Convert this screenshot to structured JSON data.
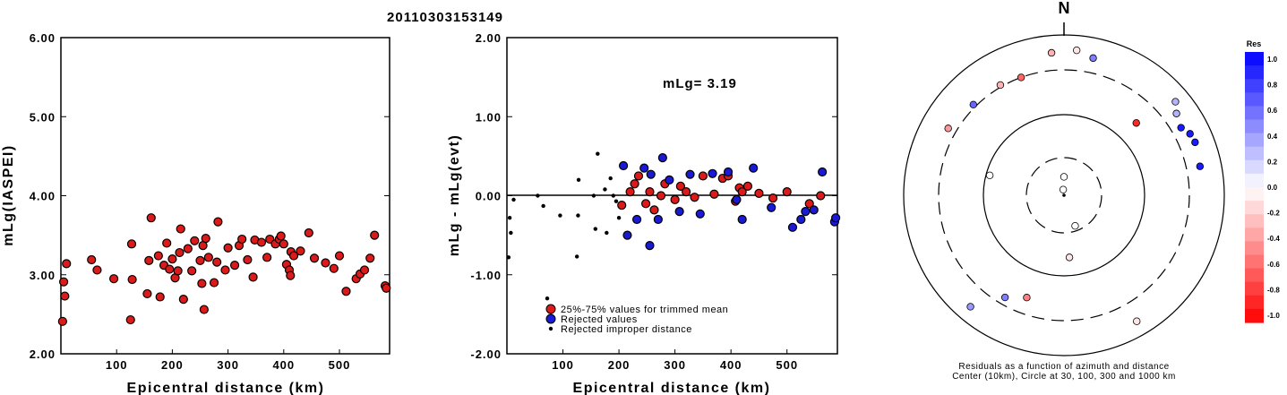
{
  "event_id": "20110303153149",
  "colors": {
    "accepted": "#dd1a1a",
    "rejected": "#1a1ad6",
    "improper": "#000000"
  },
  "chart_data": [
    {
      "type": "scatter",
      "xlabel": "Epicentral distance (km)",
      "ylabel": "mLg(IASPEI)",
      "xlim": [
        0,
        590
      ],
      "ylim": [
        2.0,
        6.0
      ],
      "xticks": [
        "100",
        "200",
        "300",
        "400",
        "500"
      ],
      "yticks": [
        "2.00",
        "3.00",
        "4.00",
        "5.00",
        "6.00"
      ],
      "grid": false,
      "series": [
        {
          "points": [
            [
              3,
              2.41
            ],
            [
              5,
              2.91
            ],
            [
              7,
              2.73
            ],
            [
              10,
              3.14
            ],
            [
              55,
              3.19
            ],
            [
              65,
              3.06
            ],
            [
              95,
              2.95
            ],
            [
              125,
              2.43
            ],
            [
              127,
              3.39
            ],
            [
              128,
              2.94
            ],
            [
              155,
              2.76
            ],
            [
              158,
              3.18
            ],
            [
              162,
              3.72
            ],
            [
              175,
              3.24
            ],
            [
              178,
              2.72
            ],
            [
              185,
              3.12
            ],
            [
              190,
              3.4
            ],
            [
              195,
              3.07
            ],
            [
              200,
              3.2
            ],
            [
              205,
              2.96
            ],
            [
              210,
              3.05
            ],
            [
              213,
              3.28
            ],
            [
              215,
              3.58
            ],
            [
              220,
              2.69
            ],
            [
              228,
              3.33
            ],
            [
              235,
              3.05
            ],
            [
              240,
              3.43
            ],
            [
              250,
              3.18
            ],
            [
              253,
              2.89
            ],
            [
              255,
              3.37
            ],
            [
              257,
              2.56
            ],
            [
              260,
              3.46
            ],
            [
              265,
              3.22
            ],
            [
              275,
              2.9
            ],
            [
              280,
              3.16
            ],
            [
              282,
              3.67
            ],
            [
              295,
              3.06
            ],
            [
              300,
              3.34
            ],
            [
              312,
              3.12
            ],
            [
              320,
              3.37
            ],
            [
              325,
              3.45
            ],
            [
              335,
              3.19
            ],
            [
              345,
              2.97
            ],
            [
              348,
              3.44
            ],
            [
              360,
              3.41
            ],
            [
              370,
              3.22
            ],
            [
              375,
              3.45
            ],
            [
              385,
              3.39
            ],
            [
              392,
              3.45
            ],
            [
              395,
              3.49
            ],
            [
              400,
              3.39
            ],
            [
              405,
              3.13
            ],
            [
              410,
              3.06
            ],
            [
              412,
              2.99
            ],
            [
              413,
              3.29
            ],
            [
              418,
              3.24
            ],
            [
              430,
              3.3
            ],
            [
              445,
              3.53
            ],
            [
              455,
              3.21
            ],
            [
              475,
              3.15
            ],
            [
              490,
              3.08
            ],
            [
              500,
              3.24
            ],
            [
              512,
              2.79
            ],
            [
              530,
              2.95
            ],
            [
              537,
              3.01
            ],
            [
              545,
              3.06
            ],
            [
              555,
              3.21
            ],
            [
              563,
              3.5
            ],
            [
              582,
              2.86
            ],
            [
              584,
              2.83
            ]
          ]
        }
      ]
    },
    {
      "type": "scatter",
      "xlabel": "Epicentral distance (km)",
      "ylabel": "mLg - mLg(evt)",
      "xlim": [
        0,
        590
      ],
      "ylim": [
        -2.0,
        2.0
      ],
      "xticks": [
        "100",
        "200",
        "300",
        "400",
        "500"
      ],
      "yticks": [
        "-2.00",
        "-1.00",
        "0.00",
        "1.00",
        "2.00"
      ],
      "annotation": "mLg= 3.19",
      "legend": [
        "25%-75% values for trimmed mean",
        "Rejected values",
        "Rejected improper distance"
      ],
      "legend_position": "bottom-left",
      "series": [
        {
          "name": "25%-75% values for trimmed mean",
          "points": [
            [
              205,
              -0.12
            ],
            [
              220,
              0.05
            ],
            [
              228,
              0.15
            ],
            [
              235,
              0.25
            ],
            [
              248,
              -0.1
            ],
            [
              255,
              0.05
            ],
            [
              263,
              -0.18
            ],
            [
              275,
              0.0
            ],
            [
              282,
              0.15
            ],
            [
              300,
              -0.05
            ],
            [
              310,
              0.12
            ],
            [
              320,
              0.05
            ],
            [
              335,
              -0.02
            ],
            [
              350,
              0.25
            ],
            [
              370,
              0.02
            ],
            [
              385,
              0.22
            ],
            [
              395,
              0.25
            ],
            [
              408,
              -0.07
            ],
            [
              415,
              0.1
            ],
            [
              420,
              0.05
            ],
            [
              430,
              0.12
            ],
            [
              450,
              0.03
            ],
            [
              475,
              -0.03
            ],
            [
              500,
              0.05
            ],
            [
              540,
              -0.1
            ],
            [
              560,
              0.0
            ]
          ]
        },
        {
          "name": "Rejected values",
          "points": [
            [
              208,
              0.38
            ],
            [
              215,
              -0.5
            ],
            [
              232,
              -0.3
            ],
            [
              245,
              0.35
            ],
            [
              255,
              -0.63
            ],
            [
              257,
              0.27
            ],
            [
              270,
              -0.3
            ],
            [
              278,
              0.48
            ],
            [
              290,
              0.2
            ],
            [
              308,
              -0.2
            ],
            [
              327,
              0.27
            ],
            [
              345,
              -0.23
            ],
            [
              367,
              0.28
            ],
            [
              395,
              0.3
            ],
            [
              410,
              -0.05
            ],
            [
              420,
              -0.3
            ],
            [
              440,
              0.35
            ],
            [
              472,
              -0.15
            ],
            [
              510,
              -0.4
            ],
            [
              525,
              -0.3
            ],
            [
              533,
              -0.2
            ],
            [
              548,
              -0.18
            ],
            [
              563,
              0.3
            ],
            [
              585,
              -0.33
            ],
            [
              587,
              -0.28
            ]
          ]
        },
        {
          "name": "Rejected improper distance",
          "points": [
            [
              3,
              -0.78
            ],
            [
              5,
              -0.28
            ],
            [
              7,
              -0.47
            ],
            [
              12,
              -0.05
            ],
            [
              55,
              0.0
            ],
            [
              65,
              -0.13
            ],
            [
              72,
              -1.3
            ],
            [
              95,
              -0.25
            ],
            [
              125,
              -0.77
            ],
            [
              127,
              -0.25
            ],
            [
              128,
              0.2
            ],
            [
              155,
              0.0
            ],
            [
              158,
              -0.42
            ],
            [
              162,
              0.53
            ],
            [
              175,
              0.08
            ],
            [
              178,
              -0.47
            ],
            [
              185,
              0.22
            ],
            [
              190,
              0.0
            ],
            [
              195,
              -0.07
            ],
            [
              200,
              -0.28
            ]
          ]
        }
      ]
    },
    {
      "type": "scatter",
      "subtype": "polar residuals",
      "north_label": "N",
      "caption_lines": [
        "Residuals as a function of azimuth and distance",
        "Center (10km), Circle at 30, 100, 300 and 1000 km"
      ],
      "colorbar_title": "Res",
      "colorbar_ticks": [
        "1.0",
        "0.8",
        "0.6",
        "0.4",
        "0.2",
        "0.0",
        "-0.2",
        "-0.4",
        "-0.6",
        "-0.8",
        "-1.0"
      ],
      "colorbar_range": [
        -1.0,
        1.0
      ],
      "points": [
        {
          "az": 352,
          "dist": 8,
          "res": 0.0
        },
        {
          "az": 0,
          "dist": 15,
          "res": 0.0
        },
        {
          "az": 45,
          "dist": 170,
          "res": -0.85
        },
        {
          "az": 12,
          "dist": 500,
          "res": 0.5
        },
        {
          "az": 60,
          "dist": 420,
          "res": 0.9
        },
        {
          "az": 64,
          "dist": 500,
          "res": 0.9
        },
        {
          "az": 68,
          "dist": 520,
          "res": 0.9
        },
        {
          "az": 54,
          "dist": 480,
          "res": 0.3
        },
        {
          "az": 50,
          "dist": 600,
          "res": 0.3
        },
        {
          "az": 78,
          "dist": 480,
          "res": 0.9
        },
        {
          "az": 5,
          "dist": 600,
          "res": -0.1
        },
        {
          "az": -5,
          "dist": 550,
          "res": -0.3
        },
        {
          "az": -20,
          "dist": 300,
          "res": -0.6
        },
        {
          "az": -30,
          "dist": 320,
          "res": -0.3
        },
        {
          "az": -45,
          "dist": 330,
          "res": 0.6
        },
        {
          "az": -60,
          "dist": 400,
          "res": -0.4
        },
        {
          "az": -75,
          "dist": 90,
          "res": 0.0
        },
        {
          "az": 160,
          "dist": 25,
          "res": 0.0
        },
        {
          "az": 175,
          "dist": 60,
          "res": -0.1
        },
        {
          "az": 150,
          "dist": 600,
          "res": -0.1
        },
        {
          "az": -160,
          "dist": 200,
          "res": -0.5
        },
        {
          "az": -150,
          "dist": 250,
          "res": 0.5
        },
        {
          "az": -140,
          "dist": 600,
          "res": 0.4
        }
      ]
    }
  ]
}
